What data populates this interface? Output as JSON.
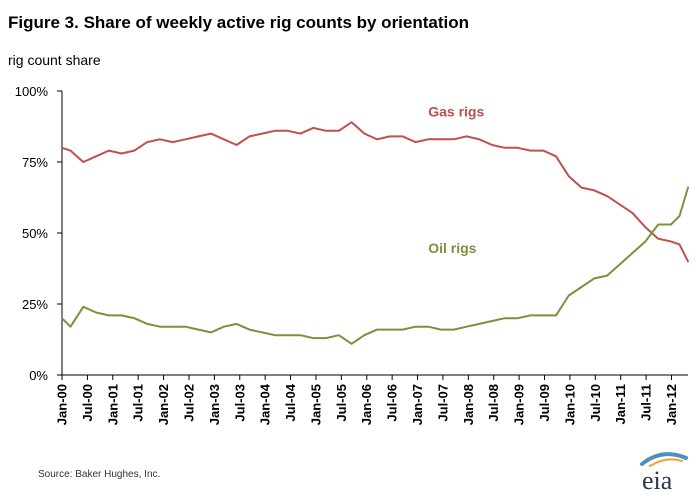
{
  "header": {
    "title": "Figure 3.  Share of weekly active rig counts by orientation",
    "units": "rig count share"
  },
  "footer": {
    "source": "Source:  Baker Hughes, Inc.",
    "logo": "eia"
  },
  "colors": {
    "gas": "#c0504d",
    "oil": "#77933c",
    "axis": "#000000",
    "gridline": "#d9d9d9"
  },
  "chart_data": {
    "type": "line",
    "title": "Figure 3.  Share of weekly active rig counts by orientation",
    "ylabel": "rig count share",
    "xlabel": "",
    "ylim": [
      0,
      100
    ],
    "yticks": [
      0,
      25,
      50,
      75,
      100
    ],
    "ytick_labels": [
      "0%",
      "25%",
      "50%",
      "75%",
      "100%"
    ],
    "xlim": [
      "2000-01",
      "2012-04"
    ],
    "xtick_labels": [
      "Jan-00",
      "Jul-00",
      "Jan-01",
      "Jul-01",
      "Jan-02",
      "Jul-02",
      "Jan-03",
      "Jul-03",
      "Jan-04",
      "Jul-04",
      "Jan-05",
      "Jul-05",
      "Jan-06",
      "Jul-06",
      "Jan-07",
      "Jul-07",
      "Jan-08",
      "Jul-08",
      "Jan-09",
      "Jul-09",
      "Jan-10",
      "Jul-10",
      "Jan-11",
      "Jul-11",
      "Jan-12"
    ],
    "legend": "inline labels",
    "grid": false,
    "series": [
      {
        "name": "Gas rigs",
        "x": [
          "2000-01",
          "2000-03",
          "2000-06",
          "2000-09",
          "2000-12",
          "2001-03",
          "2001-06",
          "2001-09",
          "2001-12",
          "2002-03",
          "2002-06",
          "2002-09",
          "2002-12",
          "2003-03",
          "2003-06",
          "2003-09",
          "2003-12",
          "2004-03",
          "2004-06",
          "2004-09",
          "2004-12",
          "2005-03",
          "2005-06",
          "2005-09",
          "2005-12",
          "2006-03",
          "2006-06",
          "2006-09",
          "2006-12",
          "2007-03",
          "2007-06",
          "2007-09",
          "2007-12",
          "2008-03",
          "2008-06",
          "2008-09",
          "2008-12",
          "2009-03",
          "2009-06",
          "2009-09",
          "2009-12",
          "2010-03",
          "2010-06",
          "2010-09",
          "2010-12",
          "2011-03",
          "2011-06",
          "2011-09",
          "2011-12",
          "2012-02",
          "2012-04"
        ],
        "values": [
          80,
          79,
          75,
          77,
          79,
          78,
          79,
          82,
          83,
          82,
          83,
          84,
          85,
          83,
          81,
          84,
          85,
          86,
          86,
          85,
          87,
          86,
          86,
          89,
          85,
          83,
          84,
          84,
          82,
          83,
          83,
          83,
          84,
          83,
          81,
          80,
          80,
          79,
          79,
          77,
          70,
          66,
          65,
          63,
          60,
          57,
          52,
          48,
          47,
          46,
          40
        ]
      },
      {
        "name": "Oil rigs",
        "x": [
          "2000-01",
          "2000-03",
          "2000-06",
          "2000-09",
          "2000-12",
          "2001-03",
          "2001-06",
          "2001-09",
          "2001-12",
          "2002-03",
          "2002-06",
          "2002-09",
          "2002-12",
          "2003-03",
          "2003-06",
          "2003-09",
          "2003-12",
          "2004-03",
          "2004-06",
          "2004-09",
          "2004-12",
          "2005-03",
          "2005-06",
          "2005-09",
          "2005-12",
          "2006-03",
          "2006-06",
          "2006-09",
          "2006-12",
          "2007-03",
          "2007-06",
          "2007-09",
          "2007-12",
          "2008-03",
          "2008-06",
          "2008-09",
          "2008-12",
          "2009-03",
          "2009-06",
          "2009-09",
          "2009-12",
          "2010-03",
          "2010-06",
          "2010-09",
          "2010-12",
          "2011-03",
          "2011-06",
          "2011-09",
          "2011-12",
          "2012-02",
          "2012-04"
        ],
        "values": [
          20,
          17,
          24,
          22,
          21,
          21,
          20,
          18,
          17,
          17,
          17,
          16,
          15,
          17,
          18,
          16,
          15,
          14,
          14,
          14,
          13,
          13,
          14,
          11,
          14,
          16,
          16,
          16,
          17,
          17,
          16,
          16,
          17,
          18,
          19,
          20,
          20,
          21,
          21,
          21,
          28,
          31,
          34,
          35,
          39,
          43,
          47,
          53,
          53,
          56,
          66
        ]
      }
    ],
    "annotations": [
      {
        "text": "Gas rigs",
        "series": "Gas rigs"
      },
      {
        "text": "Oil rigs",
        "series": "Oil rigs"
      }
    ]
  }
}
